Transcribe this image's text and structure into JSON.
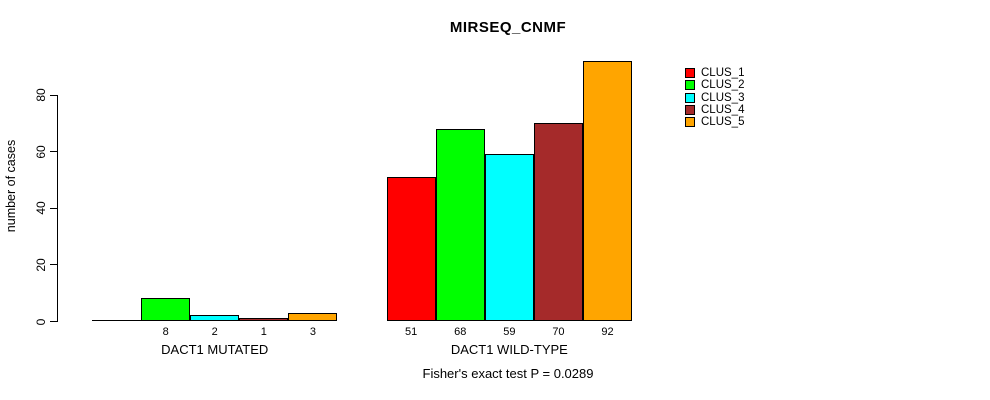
{
  "chart_data": {
    "type": "bar",
    "title": "MIRSEQ_CNMF",
    "ylabel": "number of cases",
    "xlabel": "",
    "categories": [
      "DACT1 MUTATED",
      "DACT1 WILD-TYPE"
    ],
    "series": [
      {
        "name": "CLUS_1",
        "color": "#ff0000",
        "values": [
          0,
          51
        ]
      },
      {
        "name": "CLUS_2",
        "color": "#00ff00",
        "values": [
          8,
          68
        ]
      },
      {
        "name": "CLUS_3",
        "color": "#00ffff",
        "values": [
          2,
          59
        ]
      },
      {
        "name": "CLUS_4",
        "color": "#a52a2a",
        "values": [
          1,
          70
        ]
      },
      {
        "name": "CLUS_5",
        "color": "#ffa500",
        "values": [
          3,
          92
        ]
      }
    ],
    "bar_value_labels": [
      [
        "",
        "8",
        "2",
        "1",
        "3"
      ],
      [
        "51",
        "68",
        "59",
        "70",
        "92"
      ]
    ],
    "yticks": [
      0,
      20,
      40,
      60,
      80
    ],
    "ylim": [
      0,
      92
    ],
    "grid": false,
    "legend_position": "right",
    "annotation": "Fisher's exact test P = 0.0289"
  },
  "colors": {
    "background": "#ffffff",
    "axis": "#000000",
    "bar_border": "#000000",
    "text": "#000000"
  }
}
